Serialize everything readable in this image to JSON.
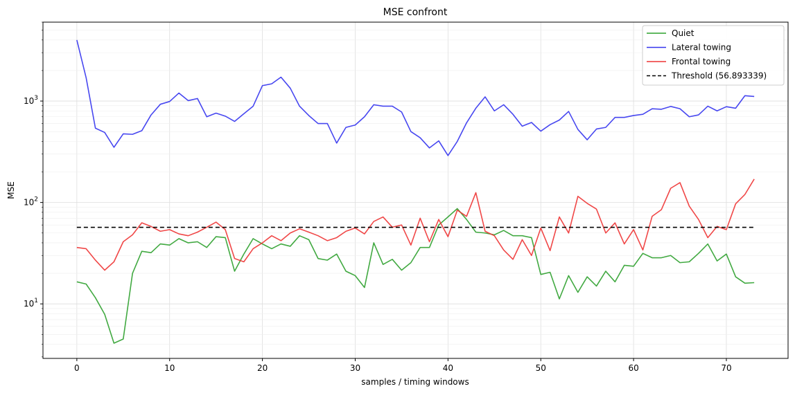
{
  "chart_data": {
    "type": "line",
    "title": "MSE confront",
    "xlabel": "samples / timing windows",
    "ylabel": "MSE",
    "yscale": "log",
    "xlim": [
      -3.65,
      76.65
    ],
    "ylim": [
      2.9,
      6000
    ],
    "x_ticks": [
      0,
      10,
      20,
      30,
      40,
      50,
      60,
      70
    ],
    "y_ticks": [
      {
        "value": 10,
        "base": "10",
        "exp": "1"
      },
      {
        "value": 100,
        "base": "10",
        "exp": "2"
      },
      {
        "value": 1000,
        "base": "10",
        "exp": "3"
      }
    ],
    "grid": true,
    "legend_position": "top-right",
    "x": [
      0,
      1,
      2,
      3,
      4,
      5,
      6,
      7,
      8,
      9,
      10,
      11,
      12,
      13,
      14,
      15,
      16,
      17,
      18,
      19,
      20,
      21,
      22,
      23,
      24,
      25,
      26,
      27,
      28,
      29,
      30,
      31,
      32,
      33,
      34,
      35,
      36,
      37,
      38,
      39,
      40,
      41,
      42,
      43,
      44,
      45,
      46,
      47,
      48,
      49,
      50,
      51,
      52,
      53,
      54,
      55,
      56,
      57,
      58,
      59,
      60,
      61,
      62,
      63,
      64,
      65,
      66,
      67,
      68,
      69,
      70,
      71,
      72,
      73
    ],
    "series": [
      {
        "name": "Quiet",
        "color": "#2ca02c",
        "style": "solid",
        "values": [
          16.5,
          15.7,
          11.5,
          7.9,
          4.1,
          4.5,
          20,
          33,
          32,
          39,
          38,
          44,
          40,
          41,
          36,
          46,
          45,
          21,
          31,
          44,
          39,
          35,
          39,
          37,
          47,
          43,
          28,
          27,
          31,
          21,
          19,
          14.5,
          40,
          24.5,
          27.5,
          21.5,
          25.5,
          36,
          36,
          60,
          72,
          87,
          68,
          51,
          50,
          48,
          53,
          47,
          47,
          45,
          19.5,
          20.5,
          11.2,
          19,
          13,
          18.5,
          15,
          21,
          16.5,
          24,
          23.5,
          31.5,
          28.5,
          28.5,
          30,
          25.5,
          26,
          31.5,
          39,
          26.5,
          31,
          18.5,
          16,
          16.2
        ]
      },
      {
        "name": "Lateral towing",
        "color": "#3333ee",
        "style": "solid",
        "values": [
          4000,
          1700,
          540,
          490,
          350,
          475,
          470,
          510,
          730,
          930,
          990,
          1200,
          1010,
          1060,
          700,
          760,
          710,
          630,
          750,
          890,
          1420,
          1480,
          1720,
          1340,
          890,
          720,
          600,
          600,
          385,
          550,
          580,
          700,
          920,
          890,
          890,
          780,
          500,
          435,
          345,
          405,
          290,
          400,
          610,
          850,
          1100,
          800,
          920,
          740,
          565,
          615,
          505,
          585,
          650,
          790,
          525,
          415,
          530,
          550,
          690,
          690,
          720,
          740,
          840,
          830,
          885,
          840,
          700,
          730,
          890,
          800,
          880,
          850,
          1130,
          1110
        ]
      },
      {
        "name": "Frontal towing",
        "color": "#ee3333",
        "style": "solid",
        "values": [
          36,
          35,
          27,
          21.5,
          26,
          41,
          48,
          63,
          58,
          52,
          54,
          49,
          47,
          51,
          57,
          64,
          54,
          28,
          26,
          35,
          40,
          47,
          42,
          50,
          55,
          51,
          47,
          42,
          45,
          52,
          56,
          49,
          65,
          72,
          57,
          60,
          38,
          70,
          41,
          68,
          46,
          84,
          73,
          125,
          52,
          47,
          34,
          27.5,
          43,
          30,
          56,
          33.5,
          72,
          50,
          115,
          98,
          86,
          50,
          63,
          39,
          54,
          34,
          73,
          85,
          138,
          157,
          92,
          68,
          45,
          58,
          54,
          97,
          120,
          170
        ]
      },
      {
        "name": "Threshold (56.893339)",
        "color": "#000000",
        "style": "dashed",
        "constant": 56.893339
      }
    ]
  }
}
